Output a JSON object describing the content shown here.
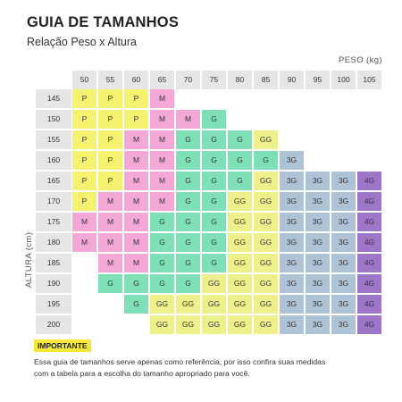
{
  "title": "GUIA DE TAMANHOS",
  "subtitle": "Relação Peso x Altura",
  "peso_label": "PESO (kg)",
  "altura_label": "ALTURA (cm)",
  "weights": [
    "50",
    "55",
    "60",
    "65",
    "70",
    "75",
    "80",
    "85",
    "90",
    "95",
    "100",
    "105"
  ],
  "heights": [
    "145",
    "150",
    "155",
    "160",
    "165",
    "170",
    "175",
    "180",
    "185",
    "190",
    "195",
    "200"
  ],
  "grid": [
    [
      "P",
      "P",
      "P",
      "M",
      "",
      "",
      "",
      "",
      "",
      "",
      "",
      ""
    ],
    [
      "P",
      "P",
      "P",
      "M",
      "M",
      "G",
      "",
      "",
      "",
      "",
      "",
      ""
    ],
    [
      "P",
      "P",
      "M",
      "M",
      "G",
      "G",
      "G",
      "GG",
      "",
      "",
      "",
      ""
    ],
    [
      "P",
      "P",
      "M",
      "M",
      "G",
      "G",
      "G",
      "G",
      "3G",
      "",
      "",
      ""
    ],
    [
      "P",
      "P",
      "M",
      "M",
      "G",
      "G",
      "G",
      "GG",
      "3G",
      "3G",
      "3G",
      "4G"
    ],
    [
      "P",
      "M",
      "M",
      "M",
      "G",
      "G",
      "GG",
      "GG",
      "3G",
      "3G",
      "3G",
      "4G"
    ],
    [
      "M",
      "M",
      "M",
      "G",
      "G",
      "G",
      "GG",
      "GG",
      "3G",
      "3G",
      "3G",
      "4G"
    ],
    [
      "M",
      "M",
      "M",
      "G",
      "G",
      "G",
      "GG",
      "GG",
      "3G",
      "3G",
      "3G",
      "4G"
    ],
    [
      "",
      "M",
      "M",
      "G",
      "G",
      "G",
      "GG",
      "GG",
      "3G",
      "3G",
      "3G",
      "4G"
    ],
    [
      "",
      "G",
      "G",
      "G",
      "G",
      "GG",
      "GG",
      "GG",
      "3G",
      "3G",
      "3G",
      "4G"
    ],
    [
      "",
      "",
      "G",
      "GG",
      "GG",
      "GG",
      "GG",
      "GG",
      "3G",
      "3G",
      "3G",
      "4G"
    ],
    [
      "",
      "",
      "",
      "GG",
      "GG",
      "GG",
      "GG",
      "GG",
      "3G",
      "3G",
      "3G",
      "4G"
    ]
  ],
  "colors": {
    "P": "#f5f270",
    "M": "#f3a8d8",
    "G": "#7fe0b8",
    "GG": "#eef08c",
    "3G": "#afc3d6",
    "4G": "#9e76c8",
    "header": "#e6e6e6"
  },
  "importante_label": "IMPORTANTE",
  "note_line1": "Essa guia de tamanhos serve apenas como referência, por isso confira suas medidas",
  "note_line2": "com a tabela para a escolha do tamanho apropriado para você."
}
